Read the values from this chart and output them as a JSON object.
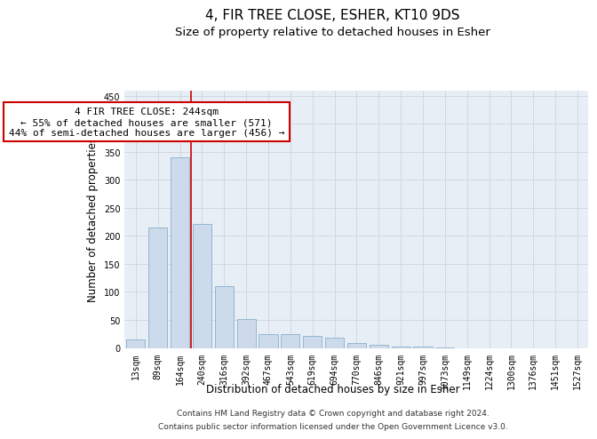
{
  "title": "4, FIR TREE CLOSE, ESHER, KT10 9DS",
  "subtitle": "Size of property relative to detached houses in Esher",
  "xlabel": "Distribution of detached houses by size in Esher",
  "ylabel": "Number of detached properties",
  "categories": [
    "13sqm",
    "89sqm",
    "164sqm",
    "240sqm",
    "316sqm",
    "392sqm",
    "467sqm",
    "543sqm",
    "619sqm",
    "694sqm",
    "770sqm",
    "846sqm",
    "921sqm",
    "997sqm",
    "1073sqm",
    "1149sqm",
    "1224sqm",
    "1300sqm",
    "1376sqm",
    "1451sqm",
    "1527sqm"
  ],
  "values": [
    15,
    215,
    340,
    222,
    111,
    52,
    25,
    24,
    22,
    19,
    8,
    6,
    2,
    2,
    1,
    0,
    0,
    0,
    0,
    0,
    0
  ],
  "bar_color": "#ccdaec",
  "bar_edge_color": "#8ab0cc",
  "grid_color": "#d0d8e0",
  "background_color": "#ffffff",
  "plot_bg_color": "#e8eef5",
  "annotation_line1": "4 FIR TREE CLOSE: 244sqm",
  "annotation_line2": "← 55% of detached houses are smaller (571)",
  "annotation_line3": "44% of semi-detached houses are larger (456) →",
  "annotation_box_color": "#ffffff",
  "annotation_box_edge": "#cc0000",
  "red_line_index": 2,
  "ylim": [
    0,
    460
  ],
  "yticks": [
    0,
    50,
    100,
    150,
    200,
    250,
    300,
    350,
    400,
    450
  ],
  "footer_line1": "Contains HM Land Registry data © Crown copyright and database right 2024.",
  "footer_line2": "Contains public sector information licensed under the Open Government Licence v3.0.",
  "title_fontsize": 11,
  "subtitle_fontsize": 9.5,
  "axis_label_fontsize": 8.5,
  "tick_fontsize": 7,
  "annotation_fontsize": 8,
  "footer_fontsize": 6.5
}
